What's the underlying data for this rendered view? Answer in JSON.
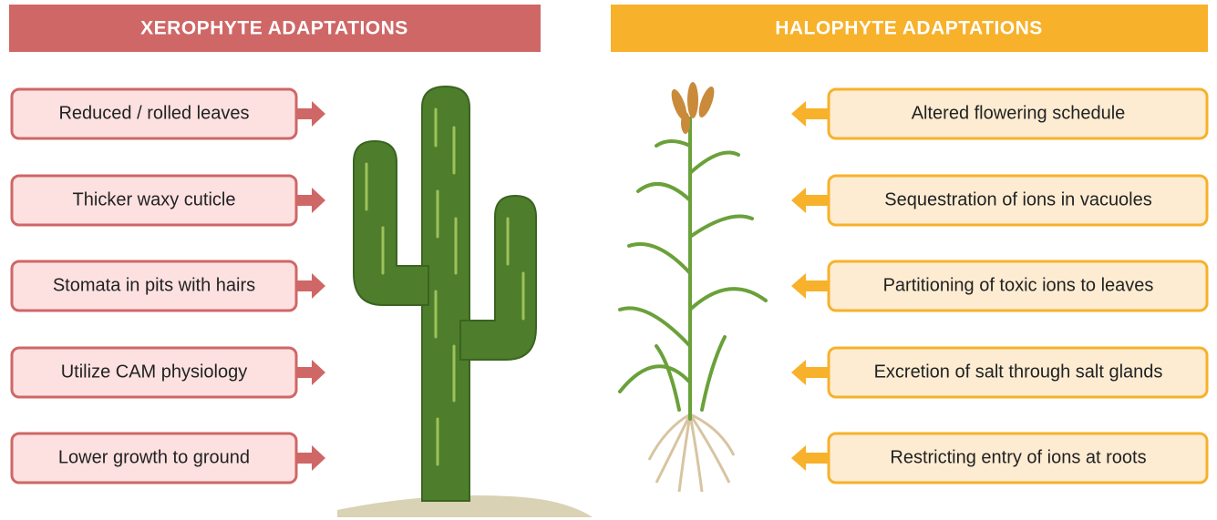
{
  "xerophyte": {
    "title": "XEROPHYTE ADAPTATIONS",
    "items": [
      "Reduced / rolled leaves",
      "Thicker waxy cuticle",
      "Stomata in pits with hairs",
      "Utilize CAM physiology",
      "Lower growth to ground"
    ]
  },
  "halophyte": {
    "title": "HALOPHYTE ADAPTATIONS",
    "items": [
      "Altered flowering schedule",
      "Sequestration of ions in vacuoles",
      "Partitioning of toxic ions to leaves",
      "Excretion of salt through salt glands",
      "Restricting entry of ions at roots"
    ]
  }
}
